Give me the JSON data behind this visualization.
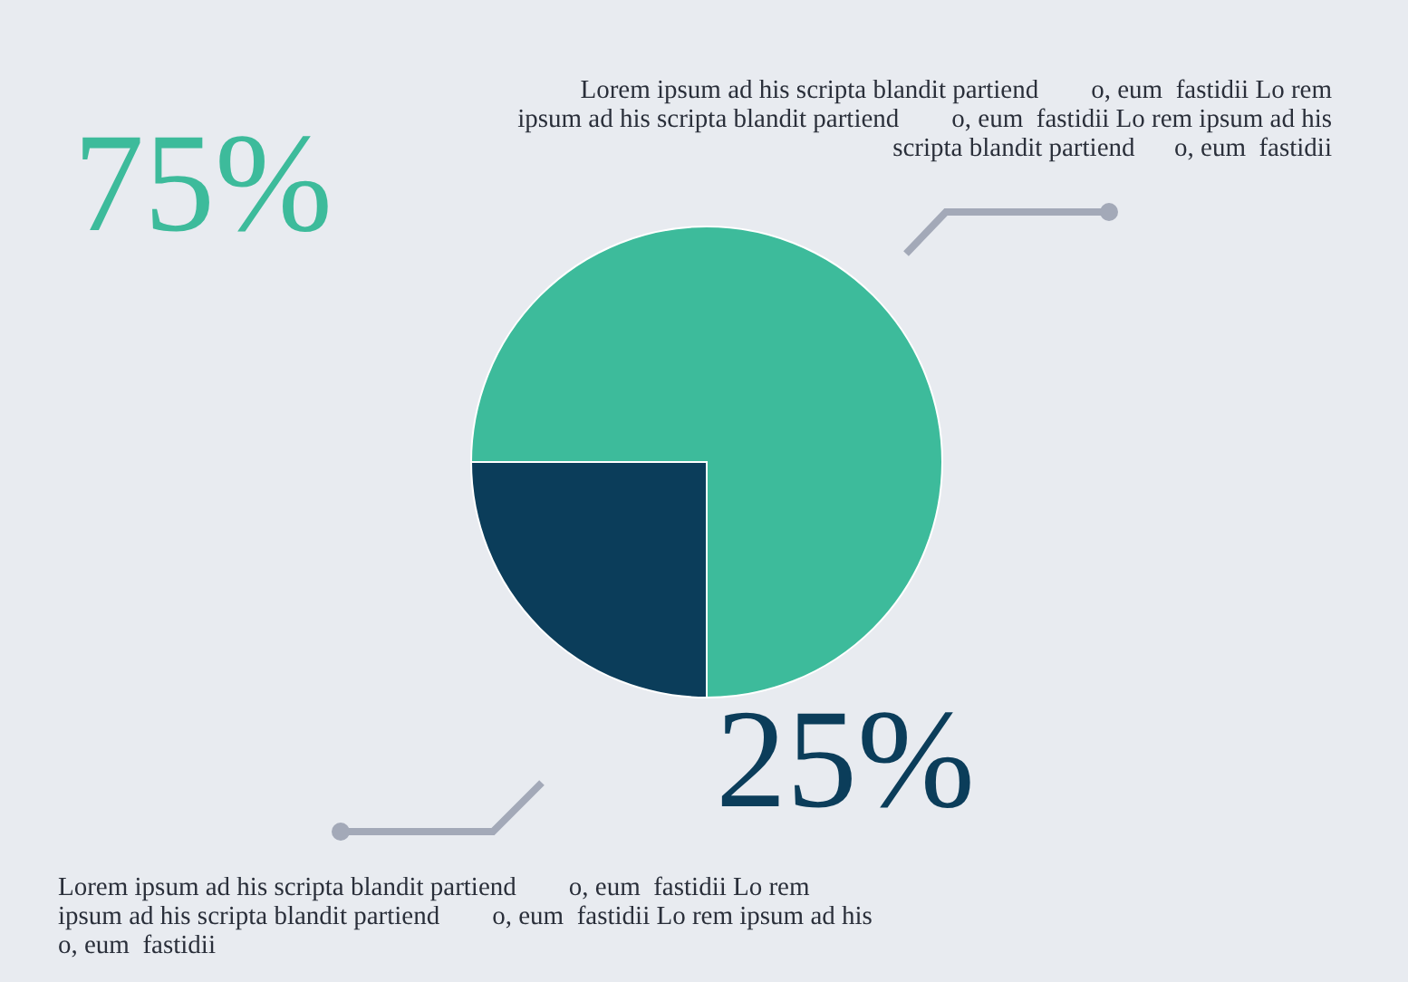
{
  "chart_data": {
    "type": "pie",
    "categories": [
      null,
      null
    ],
    "values": [
      75,
      25
    ],
    "colors": [
      "#3dbb9b",
      "#0b3d5a"
    ],
    "value_labels": [
      "75%",
      "25%"
    ],
    "annotations": [
      "Lorem ipsum ad his scripta blandit partiend        o, eum  fastidii Lo rem\nipsum ad his scripta blandit partiend        o, eum  fastidii Lo rem ipsum ad his\nscripta blandit partiend      o, eum  fastidii",
      "Lorem ipsum ad his scripta blandit partiend        o, eum  fastidii Lo rem\nipsum ad his scripta blandit partiend        o, eum  fastidii Lo rem ipsum ad his\no, eum  fastidii"
    ]
  }
}
